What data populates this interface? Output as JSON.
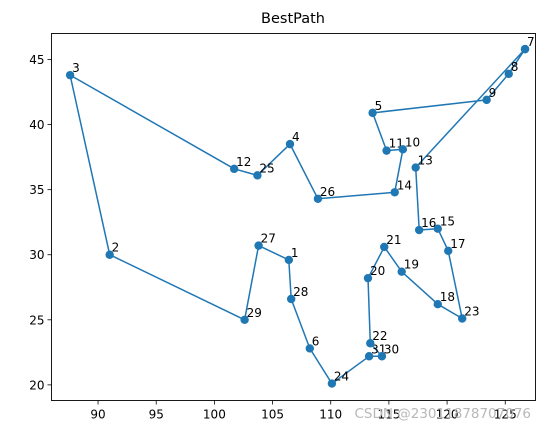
{
  "chart_data": {
    "type": "line",
    "title": "BestPath",
    "xlabel": "",
    "ylabel": "",
    "xlim": [
      86.0,
      127.6
    ],
    "ylim": [
      18.8,
      47.0
    ],
    "xticks": [
      90,
      95,
      100,
      105,
      110,
      115,
      120,
      125
    ],
    "yticks": [
      20,
      25,
      30,
      35,
      40,
      45
    ],
    "grid": false,
    "series": [
      {
        "color": "#1f77b4",
        "marker": "circle",
        "points": [
          {
            "label": "7",
            "x": 126.7,
            "y": 45.8
          },
          {
            "label": "8",
            "x": 125.3,
            "y": 43.9
          },
          {
            "label": "9",
            "x": 123.4,
            "y": 41.9
          },
          {
            "label": "5",
            "x": 113.6,
            "y": 40.9
          },
          {
            "label": "11",
            "x": 114.8,
            "y": 38.0
          },
          {
            "label": "10",
            "x": 116.2,
            "y": 38.1
          },
          {
            "label": "14",
            "x": 115.5,
            "y": 34.8
          },
          {
            "label": "26",
            "x": 108.9,
            "y": 34.3
          },
          {
            "label": "4",
            "x": 106.5,
            "y": 38.5
          },
          {
            "label": "25",
            "x": 103.7,
            "y": 36.1
          },
          {
            "label": "12",
            "x": 101.7,
            "y": 36.6
          },
          {
            "label": "3",
            "x": 87.6,
            "y": 43.8
          },
          {
            "label": "2",
            "x": 91.0,
            "y": 30.0
          },
          {
            "label": "29",
            "x": 102.6,
            "y": 25.0
          },
          {
            "label": "27",
            "x": 103.8,
            "y": 30.7
          },
          {
            "label": "1",
            "x": 106.4,
            "y": 29.6
          },
          {
            "label": "28",
            "x": 106.6,
            "y": 26.6
          },
          {
            "label": "6",
            "x": 108.2,
            "y": 22.8
          },
          {
            "label": "24",
            "x": 110.1,
            "y": 20.1
          },
          {
            "label": "31",
            "x": 113.3,
            "y": 22.2
          },
          {
            "label": "30",
            "x": 114.4,
            "y": 22.2
          },
          {
            "label": "22",
            "x": 113.4,
            "y": 23.2
          },
          {
            "label": "20",
            "x": 113.2,
            "y": 28.2
          },
          {
            "label": "21",
            "x": 114.6,
            "y": 30.6
          },
          {
            "label": "19",
            "x": 116.1,
            "y": 28.7
          },
          {
            "label": "18",
            "x": 119.2,
            "y": 26.2
          },
          {
            "label": "23",
            "x": 121.3,
            "y": 25.1
          },
          {
            "label": "17",
            "x": 120.1,
            "y": 30.3
          },
          {
            "label": "15",
            "x": 119.2,
            "y": 32.0
          },
          {
            "label": "16",
            "x": 117.6,
            "y": 31.9
          },
          {
            "label": "13",
            "x": 117.3,
            "y": 36.7
          },
          {
            "label": "7",
            "x": 126.7,
            "y": 45.8
          }
        ]
      }
    ]
  },
  "watermark": "CSDN @23011878707076"
}
